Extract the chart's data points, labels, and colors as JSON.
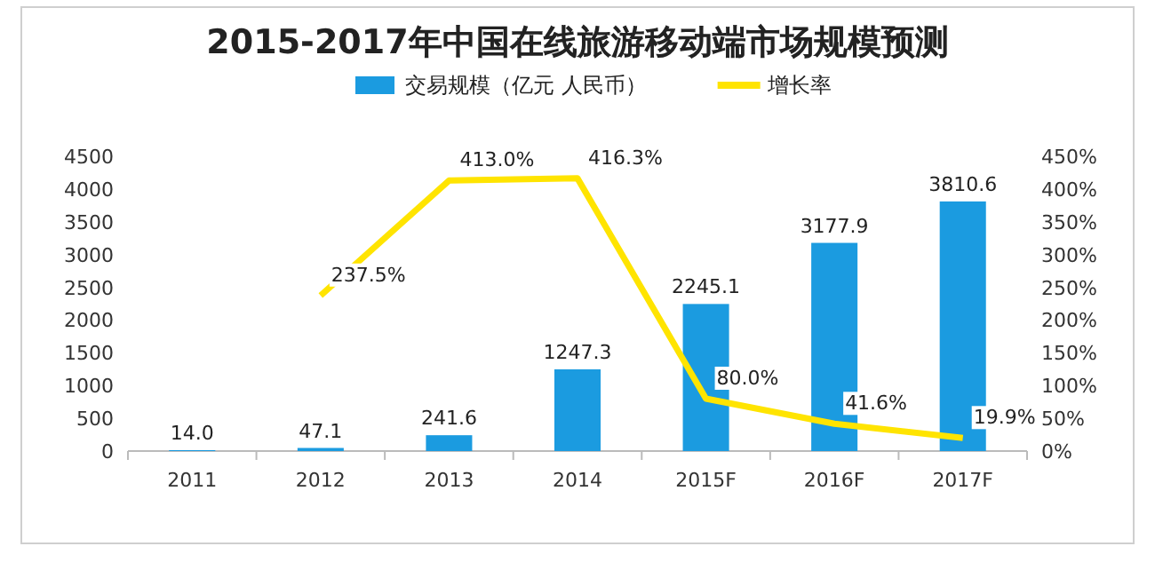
{
  "chart_data": {
    "type": "bar",
    "title": "2015-2017年中国在线旅游移动端市场规模预测",
    "categories": [
      "2011",
      "2012",
      "2013",
      "2014",
      "2015F",
      "2016F",
      "2017F"
    ],
    "series": [
      {
        "name": "交易规模（亿元 人民币）",
        "color": "#1b9be0",
        "values": [
          14.0,
          47.1,
          241.6,
          1247.3,
          2245.1,
          3177.9,
          3810.6
        ],
        "value_labels": [
          "14.0",
          "47.1",
          "241.6",
          "1247.3",
          "2245.1",
          "3177.9",
          "3810.6"
        ]
      },
      {
        "name": "增长率",
        "type": "line",
        "axis": "y2",
        "color": "#ffe400",
        "values": [
          null,
          237.5,
          413.0,
          416.3,
          80.0,
          41.6,
          19.9
        ],
        "value_labels": [
          null,
          "237.5%",
          "413.0%",
          "416.3%",
          "80.0%",
          "41.6%",
          "19.9%"
        ]
      }
    ],
    "ylim": [
      0,
      4500
    ],
    "yticks": [
      0,
      500,
      1000,
      1500,
      2000,
      2500,
      3000,
      3500,
      4000,
      4500
    ],
    "y2lim": [
      0,
      450
    ],
    "y2ticks": [
      {
        "value": 0,
        "label": "0%"
      },
      {
        "value": 50,
        "label": "50%"
      },
      {
        "value": 100,
        "label": "100%"
      },
      {
        "value": 150,
        "label": "150%"
      },
      {
        "value": 200,
        "label": "200%"
      },
      {
        "value": 250,
        "label": "250%"
      },
      {
        "value": 300,
        "label": "300%"
      },
      {
        "value": 350,
        "label": "350%"
      },
      {
        "value": 400,
        "label": "400%"
      },
      {
        "value": 450,
        "label": "450%"
      }
    ],
    "legend": "top"
  }
}
